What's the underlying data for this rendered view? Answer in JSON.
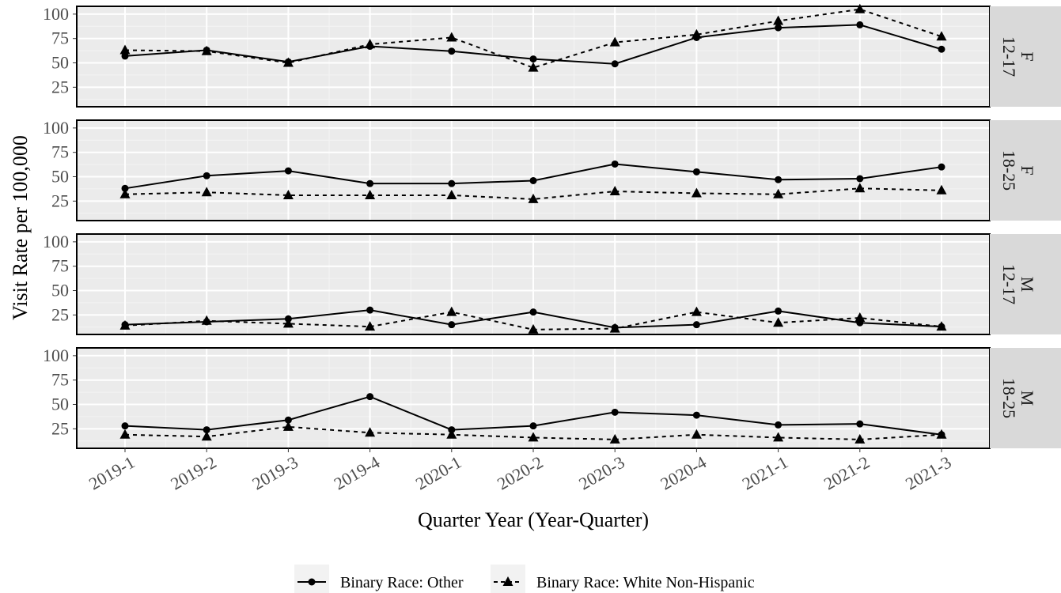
{
  "chart_data": {
    "type": "line",
    "xlabel": "Quarter Year (Year-Quarter)",
    "ylabel": "Visit Rate per 100,000",
    "categories": [
      "2019-1",
      "2019-2",
      "2019-3",
      "2019-4",
      "2020-1",
      "2020-2",
      "2020-3",
      "2020-4",
      "2021-1",
      "2021-2",
      "2021-3"
    ],
    "ylim": [
      5,
      108
    ],
    "yticks": [
      25,
      50,
      75,
      100
    ],
    "grid": true,
    "legend_position": "bottom",
    "legend": [
      {
        "name": "Binary Race: Other",
        "line": "solid",
        "marker": "circle"
      },
      {
        "name": "Binary Race: White Non-Hispanic",
        "line": "dashed",
        "marker": "triangle"
      }
    ],
    "panels": [
      {
        "strip": [
          "F",
          "12-17"
        ],
        "series": [
          {
            "name": "Binary Race: Other",
            "values": [
              57,
              63,
              51,
              67,
              62,
              54,
              49,
              76,
              86,
              89,
              64
            ]
          },
          {
            "name": "Binary Race: White Non-Hispanic",
            "values": [
              63,
              62,
              50,
              69,
              76,
              45,
              71,
              79,
              93,
              105,
              77
            ]
          }
        ]
      },
      {
        "strip": [
          "F",
          "18-25"
        ],
        "series": [
          {
            "name": "Binary Race: Other",
            "values": [
              38,
              51,
              56,
              43,
              43,
              46,
              63,
              55,
              47,
              48,
              60
            ]
          },
          {
            "name": "Binary Race: White Non-Hispanic",
            "values": [
              32,
              34,
              31,
              31,
              31,
              27,
              35,
              33,
              32,
              38,
              36
            ]
          }
        ]
      },
      {
        "strip": [
          "M",
          "12-17"
        ],
        "series": [
          {
            "name": "Binary Race: Other",
            "values": [
              15,
              18,
              21,
              30,
              15,
              28,
              12,
              15,
              29,
              17,
              13
            ]
          },
          {
            "name": "Binary Race: White Non-Hispanic",
            "values": [
              14,
              19,
              16,
              13,
              28,
              10,
              11,
              28,
              17,
              22,
              13
            ]
          }
        ]
      },
      {
        "strip": [
          "M",
          "18-25"
        ],
        "series": [
          {
            "name": "Binary Race: Other",
            "values": [
              28,
              24,
              34,
              58,
              24,
              28,
              42,
              39,
              29,
              30,
              19
            ]
          },
          {
            "name": "Binary Race: White Non-Hispanic",
            "values": [
              19,
              17,
              27,
              21,
              19,
              16,
              14,
              19,
              16,
              14,
              19
            ]
          }
        ]
      }
    ]
  }
}
